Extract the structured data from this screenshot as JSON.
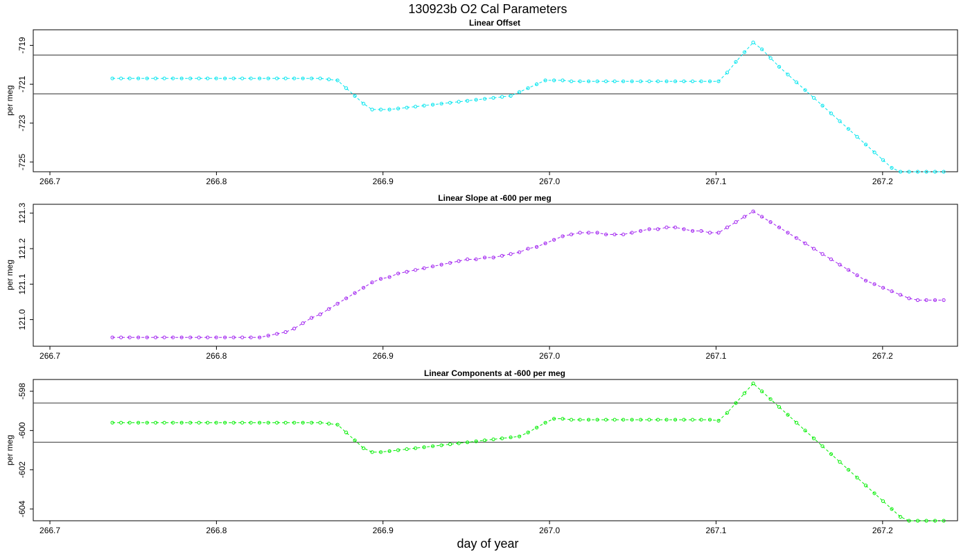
{
  "title": "130923b   O2 Cal Parameters",
  "xlabel": "day of year",
  "colors": {
    "cyan": "#00e5ee",
    "magenta": "#a020f0",
    "green": "#00ee00",
    "axis": "#000000",
    "refline": "#333333"
  },
  "chart_data": [
    {
      "type": "line",
      "title": "Linear Offset",
      "xlabel": "",
      "ylabel": "per meg",
      "xlim": [
        266.69,
        267.245
      ],
      "ylim": [
        -725.5,
        -718.2
      ],
      "xticks": [
        "266.7",
        "266.8",
        "266.9",
        "267.0",
        "267.1",
        "267.2"
      ],
      "yticks": [
        "-719",
        "-721",
        "-723",
        "-725"
      ],
      "hlines": [
        -719.5,
        -721.5
      ],
      "series": [
        {
          "name": "offset",
          "color": "cyan",
          "x": [
            266.7375,
            266.7427,
            266.7479,
            266.7531,
            266.7583,
            266.7635,
            266.7687,
            266.7739,
            266.7791,
            266.7843,
            266.7895,
            266.7947,
            266.7999,
            266.8051,
            266.8103,
            266.8155,
            266.8207,
            266.8259,
            266.8311,
            266.8363,
            266.8415,
            266.8467,
            266.8519,
            266.8571,
            266.8623,
            266.8675,
            266.8727,
            266.8779,
            266.8831,
            266.8883,
            266.8935,
            266.8987,
            266.9039,
            266.9091,
            266.9143,
            266.9195,
            266.9247,
            266.9299,
            266.9351,
            266.9403,
            266.9455,
            266.9507,
            266.9559,
            266.9611,
            266.9663,
            266.9715,
            266.9767,
            266.9819,
            266.9871,
            266.9923,
            266.9975,
            267.0027,
            267.0079,
            267.0131,
            267.0183,
            267.0235,
            267.0287,
            267.0339,
            267.0391,
            267.0443,
            267.0495,
            267.0547,
            267.0599,
            267.0651,
            267.0703,
            267.0755,
            267.0807,
            267.0859,
            267.0911,
            267.0963,
            267.1015,
            267.1067,
            267.1119,
            267.1171,
            267.1223,
            267.1275,
            267.1327,
            267.1379,
            267.1431,
            267.1483,
            267.1535,
            267.1587,
            267.1639,
            267.1691,
            267.1743,
            267.1795,
            267.1847,
            267.1899,
            267.1951,
            267.2003,
            267.2055,
            267.2107,
            267.2159,
            267.2211,
            267.2263,
            267.2315,
            267.2367
          ],
          "y": [
            -720.7,
            -720.7,
            -720.7,
            -720.7,
            -720.7,
            -720.7,
            -720.7,
            -720.7,
            -720.7,
            -720.7,
            -720.7,
            -720.7,
            -720.7,
            -720.7,
            -720.7,
            -720.7,
            -720.7,
            -720.7,
            -720.7,
            -720.7,
            -720.7,
            -720.7,
            -720.7,
            -720.7,
            -720.7,
            -720.75,
            -720.8,
            -721.2,
            -721.6,
            -722.0,
            -722.3,
            -722.3,
            -722.3,
            -722.25,
            -722.2,
            -722.15,
            -722.1,
            -722.05,
            -722.0,
            -721.95,
            -721.9,
            -721.85,
            -721.8,
            -721.75,
            -721.7,
            -721.65,
            -721.6,
            -721.4,
            -721.2,
            -721.0,
            -720.8,
            -720.8,
            -720.8,
            -720.85,
            -720.85,
            -720.85,
            -720.85,
            -720.85,
            -720.85,
            -720.85,
            -720.85,
            -720.85,
            -720.85,
            -720.85,
            -720.85,
            -720.85,
            -720.85,
            -720.85,
            -720.85,
            -720.85,
            -720.85,
            -720.4,
            -719.85,
            -719.35,
            -718.85,
            -719.2,
            -719.65,
            -720.1,
            -720.5,
            -720.9,
            -721.3,
            -721.7,
            -722.1,
            -722.5,
            -722.9,
            -723.3,
            -723.7,
            -724.1,
            -724.5,
            -724.9,
            -725.3,
            -725.7,
            -725.9,
            -725.9,
            -725.9,
            -725.9,
            -725.9
          ]
        }
      ]
    },
    {
      "type": "line",
      "title": "Linear Slope at -600 per meg",
      "xlabel": "",
      "ylabel": "per meg",
      "xlim": [
        266.69,
        267.245
      ],
      "ylim": [
        120.925,
        121.325
      ],
      "xticks": [
        "266.7",
        "266.8",
        "266.9",
        "267.0",
        "267.1",
        "267.2"
      ],
      "yticks": [
        "121.0",
        "121.1",
        "121.2",
        "121.3"
      ],
      "hlines": [],
      "series": [
        {
          "name": "slope",
          "color": "magenta",
          "x": [
            266.7375,
            266.7427,
            266.7479,
            266.7531,
            266.7583,
            266.7635,
            266.7687,
            266.7739,
            266.7791,
            266.7843,
            266.7895,
            266.7947,
            266.7999,
            266.8051,
            266.8103,
            266.8155,
            266.8207,
            266.8259,
            266.8311,
            266.8363,
            266.8415,
            266.8467,
            266.8519,
            266.8571,
            266.8623,
            266.8675,
            266.8727,
            266.8779,
            266.8831,
            266.8883,
            266.8935,
            266.8987,
            266.9039,
            266.9091,
            266.9143,
            266.9195,
            266.9247,
            266.9299,
            266.9351,
            266.9403,
            266.9455,
            266.9507,
            266.9559,
            266.9611,
            266.9663,
            266.9715,
            266.9767,
            266.9819,
            266.9871,
            266.9923,
            266.9975,
            267.0027,
            267.0079,
            267.0131,
            267.0183,
            267.0235,
            267.0287,
            267.0339,
            267.0391,
            267.0443,
            267.0495,
            267.0547,
            267.0599,
            267.0651,
            267.0703,
            267.0755,
            267.0807,
            267.0859,
            267.0911,
            267.0963,
            267.1015,
            267.1067,
            267.1119,
            267.1171,
            267.1223,
            267.1275,
            267.1327,
            267.1379,
            267.1431,
            267.1483,
            267.1535,
            267.1587,
            267.1639,
            267.1691,
            267.1743,
            267.1795,
            267.1847,
            267.1899,
            267.1951,
            267.2003,
            267.2055,
            267.2107,
            267.2159,
            267.2211,
            267.2263,
            267.2315,
            267.2367
          ],
          "y": [
            120.95,
            120.95,
            120.95,
            120.95,
            120.95,
            120.95,
            120.95,
            120.95,
            120.95,
            120.95,
            120.95,
            120.95,
            120.95,
            120.95,
            120.95,
            120.95,
            120.95,
            120.95,
            120.955,
            120.96,
            120.965,
            120.975,
            120.99,
            121.005,
            121.015,
            121.03,
            121.045,
            121.06,
            121.075,
            121.09,
            121.105,
            121.115,
            121.12,
            121.13,
            121.135,
            121.14,
            121.145,
            121.15,
            121.155,
            121.16,
            121.165,
            121.17,
            121.17,
            121.175,
            121.175,
            121.18,
            121.185,
            121.19,
            121.2,
            121.205,
            121.215,
            121.225,
            121.235,
            121.24,
            121.245,
            121.245,
            121.245,
            121.24,
            121.24,
            121.24,
            121.245,
            121.25,
            121.255,
            121.255,
            121.26,
            121.26,
            121.255,
            121.25,
            121.25,
            121.245,
            121.245,
            121.26,
            121.275,
            121.29,
            121.305,
            121.29,
            121.275,
            121.26,
            121.245,
            121.23,
            121.215,
            121.2,
            121.185,
            121.17,
            121.155,
            121.14,
            121.125,
            121.11,
            121.1,
            121.09,
            121.08,
            121.07,
            121.06,
            121.055,
            121.055,
            121.055,
            121.055
          ]
        }
      ]
    },
    {
      "type": "line",
      "title": "Linear Components at -600 per meg",
      "xlabel": "day of year",
      "ylabel": "per meg",
      "xlim": [
        266.69,
        267.245
      ],
      "ylim": [
        -604.6,
        -597.4
      ],
      "xticks": [
        "266.7",
        "266.8",
        "266.9",
        "267.0",
        "267.1",
        "267.2"
      ],
      "yticks": [
        "-598",
        "-600",
        "-602",
        "-604"
      ],
      "hlines": [
        -598.6,
        -600.6
      ],
      "series": [
        {
          "name": "components",
          "color": "green",
          "x": [
            266.7375,
            266.7427,
            266.7479,
            266.7531,
            266.7583,
            266.7635,
            266.7687,
            266.7739,
            266.7791,
            266.7843,
            266.7895,
            266.7947,
            266.7999,
            266.8051,
            266.8103,
            266.8155,
            266.8207,
            266.8259,
            266.8311,
            266.8363,
            266.8415,
            266.8467,
            266.8519,
            266.8571,
            266.8623,
            266.8675,
            266.8727,
            266.8779,
            266.8831,
            266.8883,
            266.8935,
            266.8987,
            266.9039,
            266.9091,
            266.9143,
            266.9195,
            266.9247,
            266.9299,
            266.9351,
            266.9403,
            266.9455,
            266.9507,
            266.9559,
            266.9611,
            266.9663,
            266.9715,
            266.9767,
            266.9819,
            266.9871,
            266.9923,
            266.9975,
            267.0027,
            267.0079,
            267.0131,
            267.0183,
            267.0235,
            267.0287,
            267.0339,
            267.0391,
            267.0443,
            267.0495,
            267.0547,
            267.0599,
            267.0651,
            267.0703,
            267.0755,
            267.0807,
            267.0859,
            267.0911,
            267.0963,
            267.1015,
            267.1067,
            267.1119,
            267.1171,
            267.1223,
            267.1275,
            267.1327,
            267.1379,
            267.1431,
            267.1483,
            267.1535,
            267.1587,
            267.1639,
            267.1691,
            267.1743,
            267.1795,
            267.1847,
            267.1899,
            267.1951,
            267.2003,
            267.2055,
            267.2107,
            267.2159,
            267.2211,
            267.2263,
            267.2315,
            267.2367
          ],
          "y": [
            -599.6,
            -599.6,
            -599.6,
            -599.6,
            -599.6,
            -599.6,
            -599.6,
            -599.6,
            -599.6,
            -599.6,
            -599.6,
            -599.6,
            -599.6,
            -599.6,
            -599.6,
            -599.6,
            -599.6,
            -599.6,
            -599.6,
            -599.6,
            -599.6,
            -599.6,
            -599.6,
            -599.6,
            -599.6,
            -599.65,
            -599.7,
            -600.1,
            -600.5,
            -600.9,
            -601.1,
            -601.1,
            -601.05,
            -601.0,
            -600.95,
            -600.9,
            -600.85,
            -600.8,
            -600.75,
            -600.7,
            -600.65,
            -600.6,
            -600.55,
            -600.5,
            -600.45,
            -600.4,
            -600.35,
            -600.3,
            -600.1,
            -599.85,
            -599.6,
            -599.4,
            -599.4,
            -599.45,
            -599.45,
            -599.45,
            -599.45,
            -599.45,
            -599.45,
            -599.45,
            -599.45,
            -599.45,
            -599.45,
            -599.45,
            -599.45,
            -599.45,
            -599.45,
            -599.45,
            -599.45,
            -599.45,
            -599.5,
            -599.1,
            -598.6,
            -598.1,
            -597.6,
            -598.0,
            -598.4,
            -598.8,
            -599.2,
            -599.6,
            -600.0,
            -600.4,
            -600.8,
            -601.2,
            -601.6,
            -602.0,
            -602.4,
            -602.8,
            -603.2,
            -603.6,
            -604.0,
            -604.4,
            -604.8,
            -604.95,
            -604.95,
            -604.95,
            -604.95
          ]
        }
      ]
    }
  ]
}
